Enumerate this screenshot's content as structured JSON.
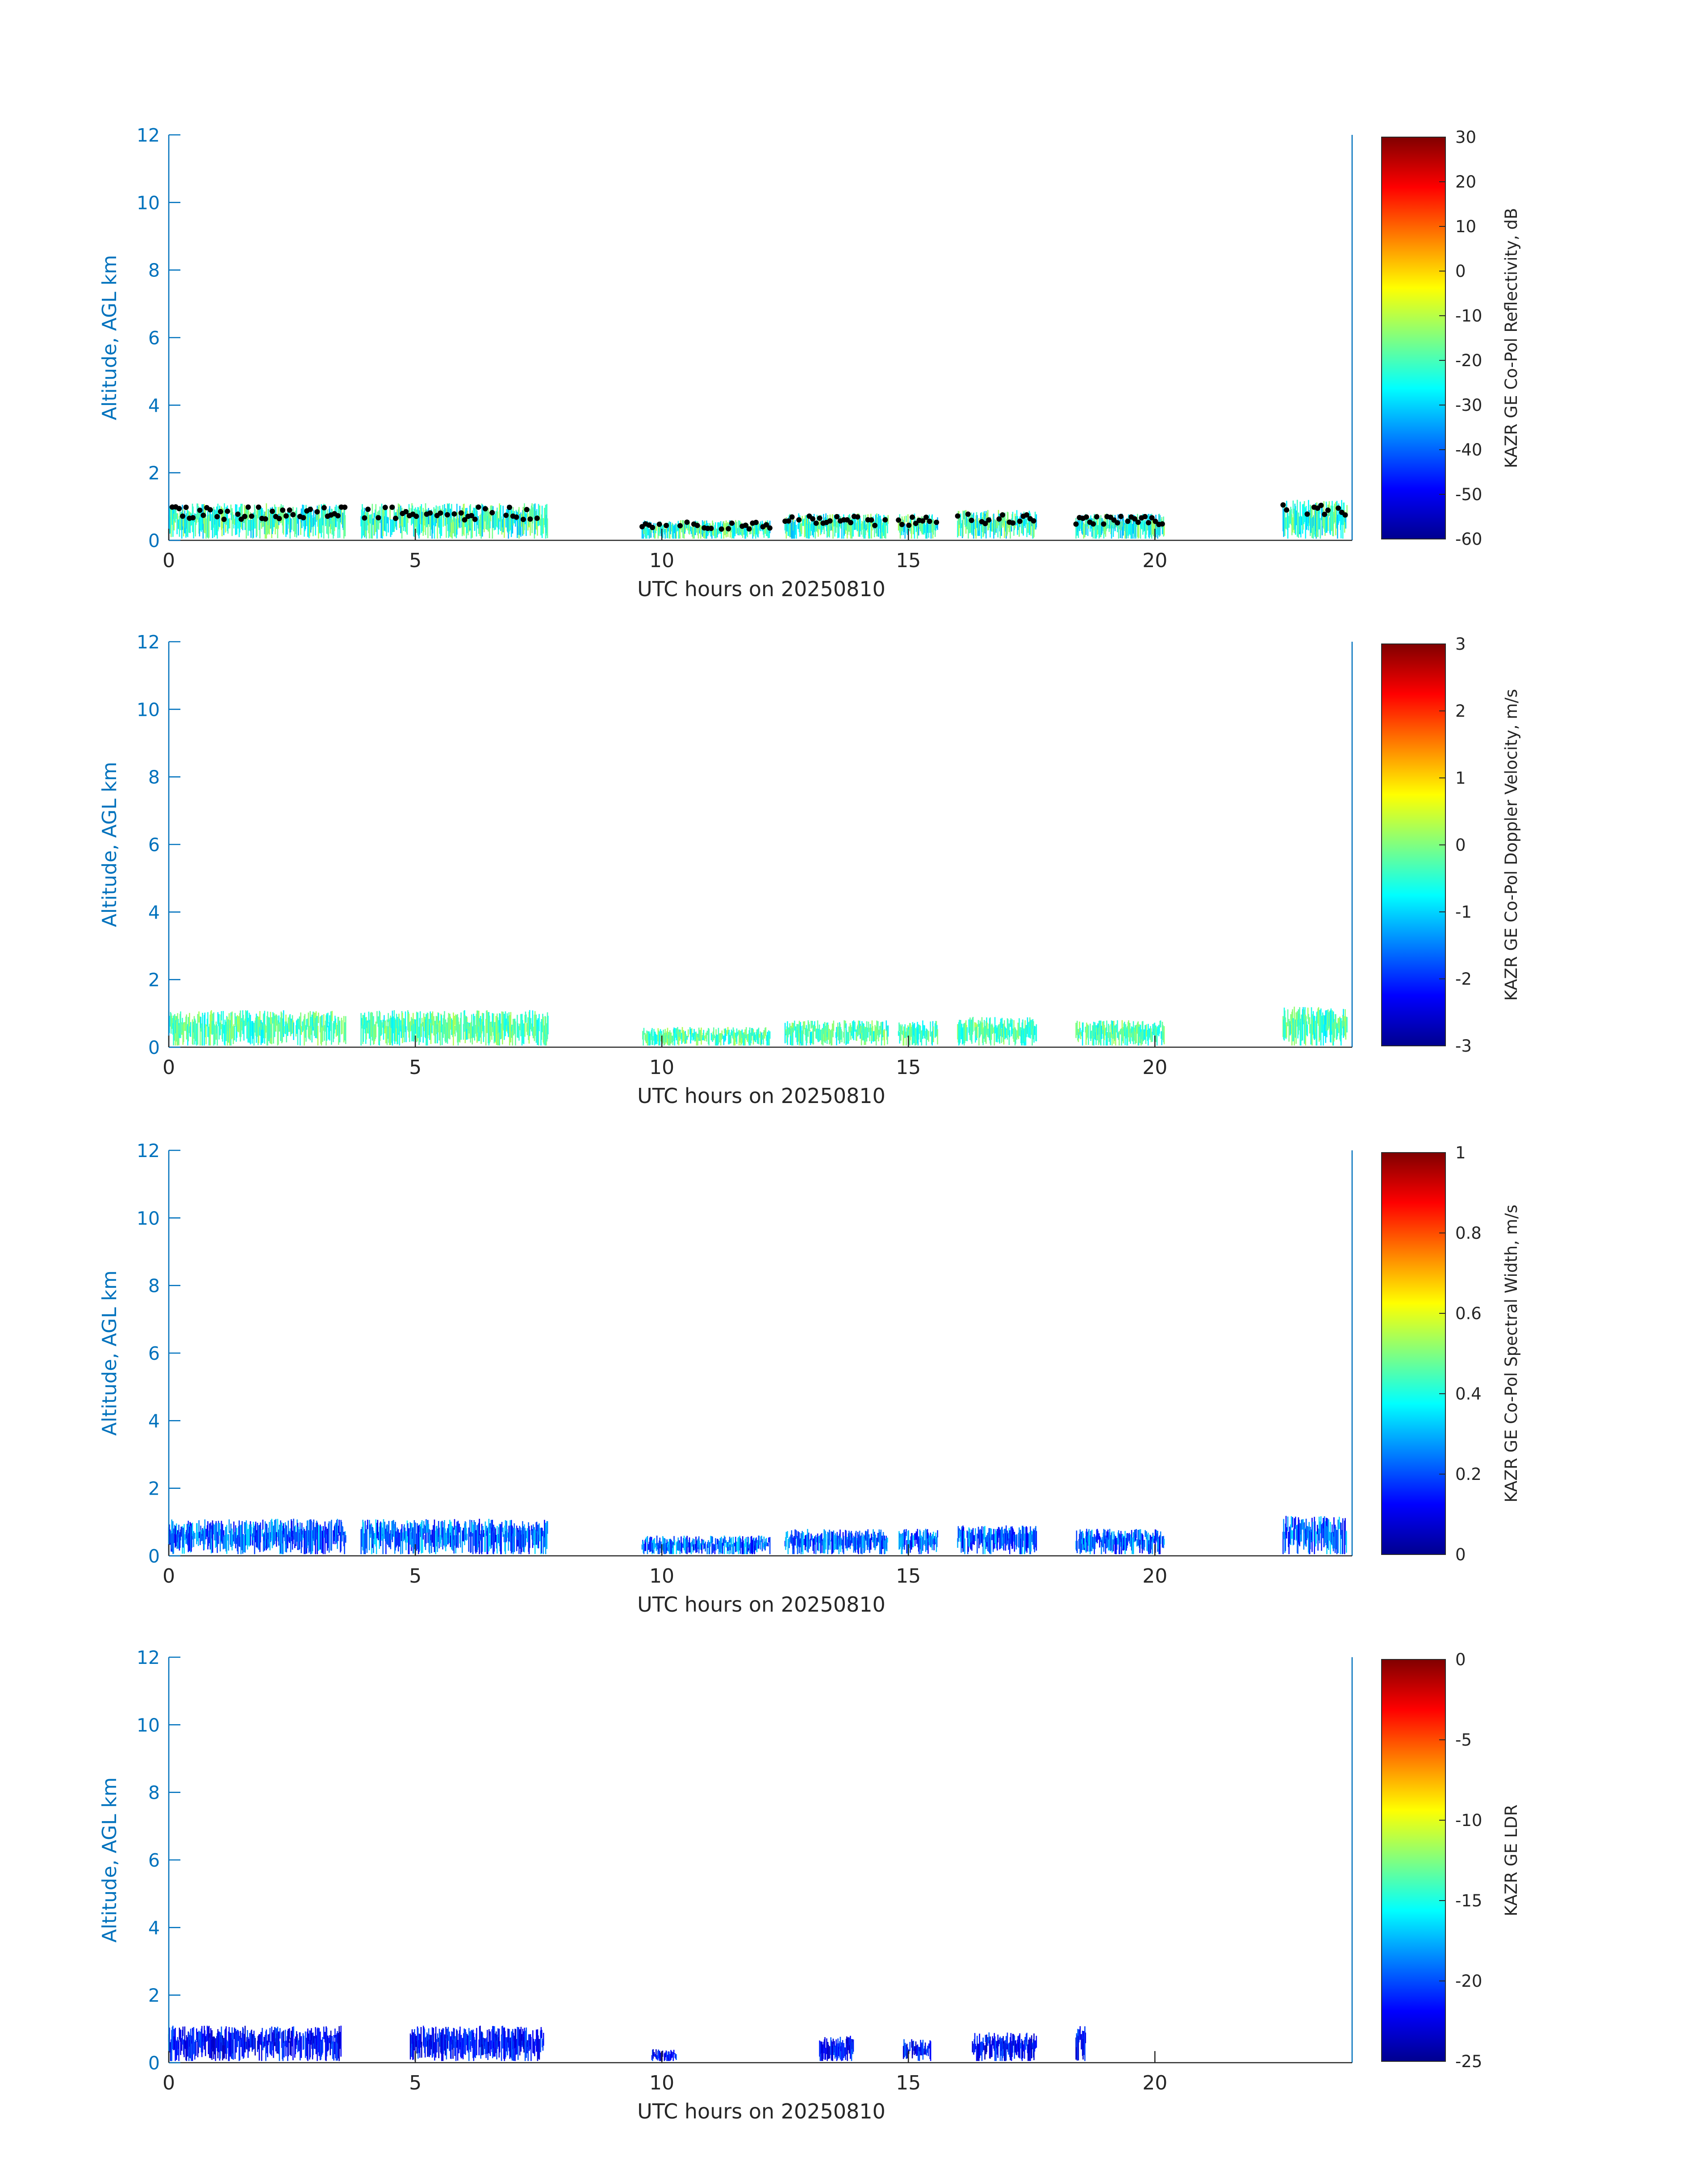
{
  "chart_data": [
    {
      "type": "heatmap",
      "ylabel": "Altitude, AGL km",
      "xlabel": "UTC hours on 20250810",
      "xlim": [
        0,
        24
      ],
      "ylim": [
        0,
        12
      ],
      "xticks": [
        "0",
        "5",
        "10",
        "15",
        "20"
      ],
      "yticks": [
        "0",
        "2",
        "4",
        "6",
        "8",
        "10",
        "12"
      ],
      "colorbar": {
        "label": "KAZR GE Co-Pol Reflectivity, dB",
        "range": [
          -60,
          30
        ],
        "ticks": [
          "30",
          "20",
          "10",
          "0",
          "-10",
          "-20",
          "-30",
          "-40",
          "-50",
          "-60"
        ]
      },
      "cloud_base_markers": true,
      "echo_segments": [
        {
          "t0": 0.0,
          "t1": 3.6,
          "top": 1.1
        },
        {
          "t0": 3.9,
          "t1": 7.7,
          "top": 1.1
        },
        {
          "t0": 9.6,
          "t1": 12.2,
          "top": 0.6
        },
        {
          "t0": 12.5,
          "t1": 14.6,
          "top": 0.8
        },
        {
          "t0": 14.8,
          "t1": 15.6,
          "top": 0.8
        },
        {
          "t0": 16.0,
          "t1": 17.6,
          "top": 0.9
        },
        {
          "t0": 18.4,
          "t1": 20.2,
          "top": 0.8
        },
        {
          "t0": 22.6,
          "t1": 23.9,
          "top": 1.2
        }
      ]
    },
    {
      "type": "heatmap",
      "ylabel": "Altitude, AGL km",
      "xlabel": "UTC hours on 20250810",
      "xlim": [
        0,
        24
      ],
      "ylim": [
        0,
        12
      ],
      "xticks": [
        "0",
        "5",
        "10",
        "15",
        "20"
      ],
      "yticks": [
        "0",
        "2",
        "4",
        "6",
        "8",
        "10",
        "12"
      ],
      "colorbar": {
        "label": "KAZR GE Co-Pol Doppler Velocity, m/s",
        "range": [
          -3,
          3
        ],
        "ticks": [
          "3",
          "2",
          "1",
          "0",
          "-1",
          "-2",
          "-3"
        ]
      },
      "echo_segments": [
        {
          "t0": 0.0,
          "t1": 3.6,
          "top": 1.1
        },
        {
          "t0": 3.9,
          "t1": 7.7,
          "top": 1.1
        },
        {
          "t0": 9.6,
          "t1": 12.2,
          "top": 0.6
        },
        {
          "t0": 12.5,
          "t1": 14.6,
          "top": 0.8
        },
        {
          "t0": 14.8,
          "t1": 15.6,
          "top": 0.8
        },
        {
          "t0": 16.0,
          "t1": 17.6,
          "top": 0.9
        },
        {
          "t0": 18.4,
          "t1": 20.2,
          "top": 0.8
        },
        {
          "t0": 22.6,
          "t1": 23.9,
          "top": 1.2
        }
      ]
    },
    {
      "type": "heatmap",
      "ylabel": "Altitude, AGL km",
      "xlabel": "UTC hours on 20250810",
      "xlim": [
        0,
        24
      ],
      "ylim": [
        0,
        12
      ],
      "xticks": [
        "0",
        "5",
        "10",
        "15",
        "20"
      ],
      "yticks": [
        "0",
        "2",
        "4",
        "6",
        "8",
        "10",
        "12"
      ],
      "colorbar": {
        "label": "KAZR GE Co-Pol Spectral Width, m/s",
        "range": [
          0,
          1
        ],
        "ticks": [
          "1",
          "0.8",
          "0.6",
          "0.4",
          "0.2",
          "0"
        ]
      },
      "echo_segments": [
        {
          "t0": 0.0,
          "t1": 3.6,
          "top": 1.1
        },
        {
          "t0": 3.9,
          "t1": 7.7,
          "top": 1.1
        },
        {
          "t0": 9.6,
          "t1": 12.2,
          "top": 0.6
        },
        {
          "t0": 12.5,
          "t1": 14.6,
          "top": 0.8
        },
        {
          "t0": 14.8,
          "t1": 15.6,
          "top": 0.8
        },
        {
          "t0": 16.0,
          "t1": 17.6,
          "top": 0.9
        },
        {
          "t0": 18.4,
          "t1": 20.2,
          "top": 0.8
        },
        {
          "t0": 22.6,
          "t1": 23.9,
          "top": 1.2
        }
      ]
    },
    {
      "type": "heatmap",
      "ylabel": "Altitude, AGL km",
      "xlabel": "UTC hours on 20250810",
      "xlim": [
        0,
        24
      ],
      "ylim": [
        0,
        12
      ],
      "xticks": [
        "0",
        "5",
        "10",
        "15",
        "20"
      ],
      "yticks": [
        "0",
        "2",
        "4",
        "6",
        "8",
        "10",
        "12"
      ],
      "colorbar": {
        "label": "KAZR GE LDR",
        "range": [
          -25,
          0
        ],
        "ticks": [
          "0",
          "-5",
          "-10",
          "-15",
          "-20",
          "-25"
        ]
      },
      "echo_segments": [
        {
          "t0": 0.0,
          "t1": 3.5,
          "top": 1.1
        },
        {
          "t0": 4.9,
          "t1": 7.6,
          "top": 1.1
        },
        {
          "t0": 9.8,
          "t1": 10.3,
          "top": 0.4
        },
        {
          "t0": 13.2,
          "t1": 13.9,
          "top": 0.8
        },
        {
          "t0": 14.9,
          "t1": 15.5,
          "top": 0.7
        },
        {
          "t0": 16.3,
          "t1": 17.6,
          "top": 0.9
        },
        {
          "t0": 18.4,
          "t1": 18.6,
          "top": 1.1
        }
      ]
    }
  ]
}
